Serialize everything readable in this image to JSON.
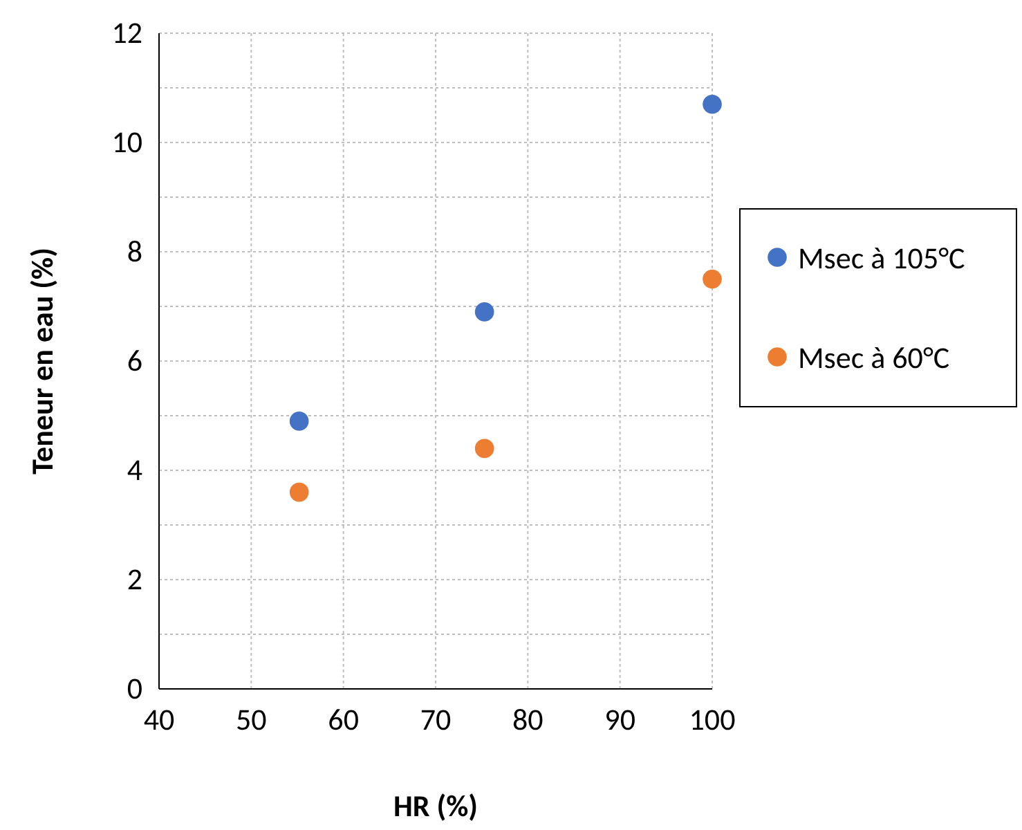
{
  "chart_data": {
    "type": "scatter",
    "xlabel": "HR (%)",
    "ylabel": "Teneur en eau (%)",
    "xlim": [
      40,
      100
    ],
    "xticks": [
      40,
      50,
      60,
      70,
      80,
      90,
      100
    ],
    "ylim": [
      0,
      12
    ],
    "yticks": [
      0,
      {
        "value": 1,
        "label": null
      },
      2,
      {
        "value": 3,
        "label": null
      },
      4,
      {
        "value": 5,
        "label": null
      },
      6,
      {
        "value": 7,
        "label": null
      },
      8,
      {
        "value": 9,
        "label": null
      },
      10,
      {
        "value": 11,
        "label": null
      },
      12
    ],
    "grid": true,
    "legend": "right",
    "marker": "circle",
    "series": [
      {
        "name": "Msec à 105°C",
        "color": "#4472c4",
        "x": [
          55.2,
          75.3,
          100
        ],
        "values": [
          4.9,
          6.9,
          10.7
        ]
      },
      {
        "name": "Msec à 60°C",
        "color": "#ed7d31",
        "x": [
          55.2,
          75.3,
          100
        ],
        "values": [
          3.6,
          4.4,
          7.5
        ]
      }
    ]
  }
}
